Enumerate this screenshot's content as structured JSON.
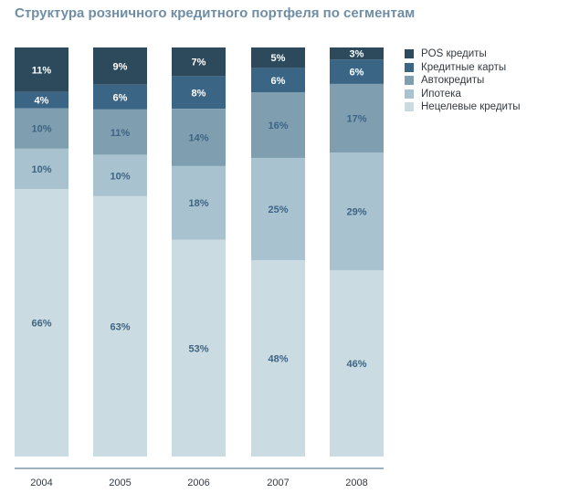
{
  "chart_data": {
    "type": "bar",
    "stacked": true,
    "title": "Структура розничного кредитного портфеля по сегментам",
    "categories": [
      "2004",
      "2005",
      "2006",
      "2007",
      "2008"
    ],
    "series": [
      {
        "name": "POS кредиты",
        "color": "#2c4a5c",
        "values": [
          11,
          9,
          7,
          5,
          3
        ],
        "labels": [
          "11%",
          "9%",
          "7%",
          "5%",
          "3%"
        ]
      },
      {
        "name": "Кредитные карты",
        "color": "#3a6585",
        "values": [
          4,
          6,
          8,
          6,
          6
        ],
        "labels": [
          "4%",
          "6%",
          "8%",
          "6%",
          "6%"
        ]
      },
      {
        "name": "Автокредиты",
        "color": "#7f9fb1",
        "values": [
          10,
          11,
          14,
          16,
          17
        ],
        "labels": [
          "10%",
          "11%",
          "14%",
          "16%",
          "17%"
        ]
      },
      {
        "name": "Ипотека",
        "color": "#a8c2d0",
        "values": [
          10,
          10,
          18,
          25,
          29
        ],
        "labels": [
          "10%",
          "10%",
          "18%",
          "25%",
          "29%"
        ]
      },
      {
        "name": "Нецелевые кредиты",
        "color": "#cadbe1",
        "values": [
          66,
          63,
          53,
          48,
          46
        ],
        "labels": [
          "66%",
          "63%",
          "53%",
          "48%",
          "46%"
        ]
      }
    ],
    "legend_position": "right",
    "grid": false
  }
}
